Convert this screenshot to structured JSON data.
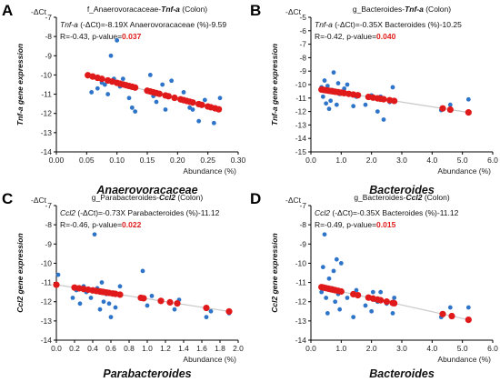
{
  "colors": {
    "scatter": "#2e75c9",
    "fit_points": "#e01a1a",
    "trend_line": "#c8c8c8",
    "pvalue": "#e01a1a"
  },
  "chart_data": [
    {
      "type": "scatter",
      "panel": "A",
      "title_prefix": "f_Anaerovoracaceae-",
      "title_gene": "Tnf-a",
      "title_suffix": " (Colon)",
      "eq_gene": "Tnf-a",
      "eq_rest": " (-ΔCt)=-8.19X Anaerovoracaceae (%)-9.59",
      "stats_prefix": "R=-0.43, p-value=",
      "pvalue": "0.037",
      "ylabel": "Tnf-a gene expression",
      "ylabel_top": "-ΔCt",
      "xlabel": "Abundance (%)",
      "xlabel_big": "Anaerovoracaceae",
      "xlim": [
        0,
        0.3
      ],
      "ylim": [
        -14,
        -7
      ],
      "x_ticks": [
        "0.00",
        "0.05",
        "0.10",
        "0.15",
        "0.20",
        "0.25",
        "0.30"
      ],
      "y_ticks": [
        "-7",
        "-8",
        "-9",
        "-10",
        "-11",
        "-12",
        "-13",
        "-14"
      ],
      "fit": {
        "slope": -8.19,
        "intercept": -9.59
      },
      "scatter_points": [
        [
          0.058,
          -10.9
        ],
        [
          0.068,
          -10.7
        ],
        [
          0.075,
          -10.4
        ],
        [
          0.08,
          -10.5
        ],
        [
          0.085,
          -11.0
        ],
        [
          0.09,
          -9.0
        ],
        [
          0.095,
          -10.2
        ],
        [
          0.1,
          -8.2
        ],
        [
          0.105,
          -10.6
        ],
        [
          0.11,
          -10.2
        ],
        [
          0.12,
          -11.2
        ],
        [
          0.125,
          -11.7
        ],
        [
          0.13,
          -11.9
        ],
        [
          0.155,
          -10.0
        ],
        [
          0.16,
          -11.1
        ],
        [
          0.165,
          -11.4
        ],
        [
          0.175,
          -10.5
        ],
        [
          0.18,
          -11.8
        ],
        [
          0.19,
          -10.3
        ],
        [
          0.21,
          -10.9
        ],
        [
          0.215,
          -11.3
        ],
        [
          0.22,
          -11.7
        ],
        [
          0.225,
          -11.8
        ],
        [
          0.235,
          -12.4
        ],
        [
          0.245,
          -11.3
        ],
        [
          0.255,
          -11.7
        ],
        [
          0.26,
          -12.5
        ],
        [
          0.27,
          -11.2
        ]
      ],
      "fit_x": [
        0.052,
        0.06,
        0.068,
        0.075,
        0.085,
        0.092,
        0.1,
        0.105,
        0.11,
        0.115,
        0.12,
        0.125,
        0.13,
        0.15,
        0.155,
        0.16,
        0.165,
        0.17,
        0.18,
        0.185,
        0.195,
        0.205,
        0.21,
        0.215,
        0.22,
        0.225,
        0.235,
        0.24,
        0.25,
        0.255,
        0.262,
        0.268
      ]
    },
    {
      "type": "scatter",
      "panel": "B",
      "title_prefix": "g_Bacteroides-",
      "title_gene": "Tnf-a",
      "title_suffix": " (Colon)",
      "eq_gene": "Tnf-a",
      "eq_rest": " (-ΔCt)=-0.35X Bacteroides (%)-10.25",
      "stats_prefix": "R=-0.42, p-value=",
      "pvalue": "0.040",
      "ylabel": "Tnf-a gene expression",
      "ylabel_top": "-ΔCt",
      "xlabel": "Abundance (%)",
      "xlabel_big": "Bacteroides",
      "xlim": [
        0,
        6
      ],
      "ylim": [
        -15,
        -5
      ],
      "x_ticks": [
        "0.0",
        "1.0",
        "2.0",
        "3.0",
        "4.0",
        "5.0",
        "6.0"
      ],
      "y_ticks": [
        "-5",
        "-6",
        "-7",
        "-8",
        "-9",
        "-10",
        "-11",
        "-12",
        "-13",
        "-14",
        "-15"
      ],
      "fit": {
        "slope": -0.35,
        "intercept": -10.25
      },
      "scatter_points": [
        [
          0.35,
          -10.2
        ],
        [
          0.4,
          -10.9
        ],
        [
          0.45,
          -9.7
        ],
        [
          0.5,
          -11.4
        ],
        [
          0.55,
          -10.1
        ],
        [
          0.6,
          -11.8
        ],
        [
          0.65,
          -11.2
        ],
        [
          0.7,
          -10.4
        ],
        [
          0.75,
          -9.1
        ],
        [
          0.8,
          -10.6
        ],
        [
          0.85,
          -11.5
        ],
        [
          0.9,
          -9.9
        ],
        [
          0.95,
          -10.7
        ],
        [
          1.1,
          -10.3
        ],
        [
          1.2,
          -10.0
        ],
        [
          1.4,
          -11.6
        ],
        [
          1.5,
          -10.9
        ],
        [
          1.8,
          -11.5
        ],
        [
          2.0,
          -10.8
        ],
        [
          2.1,
          -11.0
        ],
        [
          2.2,
          -12.0
        ],
        [
          2.3,
          -10.9
        ],
        [
          2.4,
          -12.6
        ],
        [
          2.6,
          -11.3
        ],
        [
          2.7,
          -10.2
        ],
        [
          4.3,
          -11.9
        ],
        [
          4.6,
          -11.5
        ],
        [
          5.2,
          -11.1
        ]
      ],
      "fit_x": [
        0.35,
        0.42,
        0.5,
        0.58,
        0.65,
        0.72,
        0.8,
        0.9,
        1.0,
        1.1,
        1.25,
        1.4,
        1.55,
        1.9,
        2.05,
        2.2,
        2.3,
        2.4,
        2.6,
        2.75,
        4.35,
        4.6,
        5.2
      ]
    },
    {
      "type": "scatter",
      "panel": "C",
      "title_prefix": "g_Parabacteroides-",
      "title_gene": "Ccl2",
      "title_suffix": " (Colon)",
      "eq_gene": "Ccl2",
      "eq_rest": " (-ΔCt)=-0.73X Parabacteroides (%)-11.12",
      "stats_prefix": "R=-0.46, p-value=",
      "pvalue": "0.022",
      "ylabel": "Ccl2 gene expression",
      "ylabel_top": "-ΔCt",
      "xlabel": "Abundance (%)",
      "xlabel_big": "Parabacteroides",
      "xlim": [
        0,
        2
      ],
      "ylim": [
        -14,
        -7
      ],
      "x_ticks": [
        "0.0",
        "0.2",
        "0.4",
        "0.6",
        "0.8",
        "1.0",
        "1.2",
        "1.4",
        "1.6",
        "1.8",
        "2.0"
      ],
      "y_ticks": [
        "-7",
        "-8",
        "-9",
        "-10",
        "-11",
        "-12",
        "-13",
        "-14"
      ],
      "fit": {
        "slope": -0.73,
        "intercept": -11.12
      },
      "scatter_points": [
        [
          0.02,
          -10.6
        ],
        [
          0.18,
          -11.8
        ],
        [
          0.22,
          -11.4
        ],
        [
          0.26,
          -12.1
        ],
        [
          0.3,
          -11.2
        ],
        [
          0.33,
          -11.5
        ],
        [
          0.38,
          -11.8
        ],
        [
          0.42,
          -8.5
        ],
        [
          0.45,
          -11.3
        ],
        [
          0.48,
          -12.4
        ],
        [
          0.5,
          -11.0
        ],
        [
          0.52,
          -12.0
        ],
        [
          0.55,
          -11.6
        ],
        [
          0.58,
          -12.1
        ],
        [
          0.6,
          -12.8
        ],
        [
          0.65,
          -12.3
        ],
        [
          0.7,
          -11.2
        ],
        [
          0.95,
          -10.4
        ],
        [
          1.0,
          -12.2
        ],
        [
          1.05,
          -11.7
        ],
        [
          1.15,
          -12.0
        ],
        [
          1.3,
          -12.4
        ],
        [
          1.35,
          -11.9
        ],
        [
          1.65,
          -12.8
        ],
        [
          1.7,
          -12.5
        ],
        [
          1.9,
          -12.6
        ]
      ],
      "fit_x": [
        0.0,
        0.2,
        0.25,
        0.3,
        0.35,
        0.4,
        0.44,
        0.48,
        0.5,
        0.52,
        0.55,
        0.58,
        0.62,
        0.65,
        0.7,
        0.93,
        0.96,
        1.15,
        1.25,
        1.33,
        1.65,
        1.9
      ]
    },
    {
      "type": "scatter",
      "panel": "D",
      "title_prefix": "g_Bacteroides-",
      "title_gene": "Ccl2",
      "title_suffix": " (Colon)",
      "eq_gene": "Ccl2",
      "eq_rest": " (-ΔCt)=-0.35X Bacteroides (%)-11.12",
      "stats_prefix": "R=-0.49, p-value=",
      "pvalue": "0.015",
      "ylabel": "Ccl2 gene expression",
      "ylabel_top": "-ΔCt",
      "xlabel": "Abundance (%)",
      "xlabel_big": "Bacteroides",
      "xlim": [
        0,
        6
      ],
      "ylim": [
        -14,
        -7
      ],
      "x_ticks": [
        "0.0",
        "1.0",
        "2.0",
        "3.0",
        "4.0",
        "5.0",
        "6.0"
      ],
      "y_ticks": [
        "-7",
        "-8",
        "-9",
        "-10",
        "-11",
        "-12",
        "-13",
        "-14"
      ],
      "fit": {
        "slope": -0.35,
        "intercept": -11.12
      },
      "scatter_points": [
        [
          0.35,
          -11.5
        ],
        [
          0.4,
          -10.2
        ],
        [
          0.45,
          -8.5
        ],
        [
          0.5,
          -11.8
        ],
        [
          0.55,
          -12.6
        ],
        [
          0.6,
          -10.8
        ],
        [
          0.7,
          -11.3
        ],
        [
          0.75,
          -10.4
        ],
        [
          0.8,
          -12.0
        ],
        [
          0.85,
          -9.8
        ],
        [
          0.9,
          -11.6
        ],
        [
          0.95,
          -12.4
        ],
        [
          1.0,
          -10.0
        ],
        [
          1.2,
          -11.8
        ],
        [
          1.4,
          -12.8
        ],
        [
          1.5,
          -11.4
        ],
        [
          1.8,
          -12.2
        ],
        [
          2.0,
          -12.5
        ],
        [
          2.05,
          -11.5
        ],
        [
          2.1,
          -11.9
        ],
        [
          2.2,
          -12.0
        ],
        [
          2.3,
          -11.5
        ],
        [
          2.5,
          -12.1
        ],
        [
          2.7,
          -12.6
        ],
        [
          2.75,
          -11.8
        ],
        [
          4.3,
          -12.8
        ],
        [
          4.6,
          -12.3
        ],
        [
          5.2,
          -12.3
        ]
      ],
      "fit_x": [
        0.35,
        0.42,
        0.5,
        0.58,
        0.65,
        0.72,
        0.8,
        0.9,
        1.0,
        1.4,
        1.55,
        1.9,
        2.05,
        2.2,
        2.3,
        2.5,
        2.7,
        2.75,
        4.35,
        4.65,
        5.2
      ]
    }
  ]
}
